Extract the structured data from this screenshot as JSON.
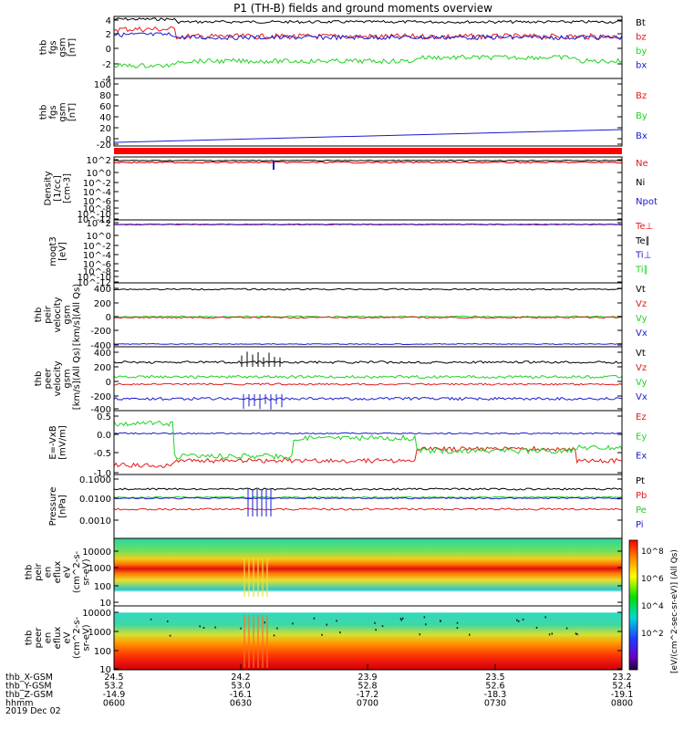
{
  "title": "P1 (TH-B) fields and ground moments overview",
  "date_label": "2019 Dec 02",
  "colors": {
    "black": "#000000",
    "red": "#e41a1a",
    "green": "#21d321",
    "blue": "#1a1ad0"
  },
  "ephemeris": {
    "rows": [
      {
        "label": "thb_X-GSM",
        "values": [
          "24.5",
          "24.2",
          "23.9",
          "23.5",
          "23.2"
        ]
      },
      {
        "label": "thb_Y-GSM",
        "values": [
          "53.2",
          "53.0",
          "52.8",
          "52.6",
          "52.4"
        ]
      },
      {
        "label": "thb_Z-GSM",
        "values": [
          "-14.9",
          "-16.1",
          "-17.2",
          "-18.3",
          "-19.1"
        ]
      },
      {
        "label": "hhmm",
        "values": [
          "0600",
          "0630",
          "0700",
          "0730",
          "0800"
        ]
      }
    ]
  },
  "colorbar": {
    "label": "[eV/(cm^2-sec-sr-eV)] (All Qs)",
    "tick_labels": [
      "10^8",
      "10^6",
      "10^4",
      "10^2"
    ]
  },
  "chart_data": [
    {
      "type": "line",
      "name": "fgs",
      "ylabel": [
        "thb",
        "fgs",
        "gsm",
        "[nT]"
      ],
      "yticks": [
        "4",
        "2",
        "0",
        "-2",
        "-4"
      ],
      "ylim": [
        -4,
        4
      ],
      "legend": [
        "Bt",
        "bz",
        "by",
        "bx"
      ],
      "legend_colors": [
        "black",
        "red",
        "green",
        "blue"
      ],
      "series": [
        {
          "name": "Bt",
          "approx": 3.0
        },
        {
          "name": "bz",
          "approx": 1.2
        },
        {
          "name": "by",
          "approx": -1.8
        },
        {
          "name": "bx",
          "approx": 1.5
        }
      ]
    },
    {
      "type": "line",
      "name": "fgs2",
      "ylabel": [
        "thb",
        "fgs",
        "gsm",
        "[nT]"
      ],
      "yticks": [
        "100",
        "80",
        "60",
        "40",
        "20",
        "0",
        "-20"
      ],
      "ylim": [
        -35,
        100
      ],
      "legend": [
        "Bz",
        "By",
        "Bx"
      ],
      "legend_colors": [
        "red",
        "green",
        "blue"
      ],
      "series": [
        {
          "name": "Bx",
          "start": -30,
          "end": -7
        }
      ]
    },
    {
      "type": "line",
      "name": "density",
      "ylabel": [
        "Density",
        "[1/cc]",
        "[cm-3]"
      ],
      "yticks": [
        "10^2",
        "10^0",
        "10^-2",
        "10^-4",
        "10^-6",
        "10^-8",
        "10^-10",
        "10^-12"
      ],
      "ylim": [
        -12,
        2
      ],
      "legend": [
        "Ne",
        "Ni",
        "Npot"
      ],
      "legend_colors": [
        "red",
        "black",
        "blue"
      ]
    },
    {
      "type": "line",
      "name": "temperature",
      "ylabel": [
        "moqt3",
        "[eV]"
      ],
      "yticks": [
        "10^2",
        "10^0",
        "10^-2",
        "10^-4",
        "10^-6",
        "10^-8",
        "10^-10",
        "10^-12"
      ],
      "ylim": [
        -12,
        2
      ],
      "legend": [
        "Te⊥",
        "Te∥",
        "Ti⊥",
        "Ti∥"
      ],
      "legend_colors": [
        "red",
        "black",
        "blue",
        "green"
      ]
    },
    {
      "type": "line",
      "name": "peir velocity",
      "ylabel": [
        "thb",
        "peir",
        "velocity",
        "gsm",
        "[km/s](All Qs)"
      ],
      "yticks": [
        "400",
        "200",
        "0",
        "-200",
        "-400"
      ],
      "ylim": [
        -400,
        400
      ],
      "legend": [
        "Vt",
        "Vz",
        "Vy",
        "Vx"
      ],
      "legend_colors": [
        "black",
        "red",
        "green",
        "blue"
      ],
      "series": [
        {
          "name": "Vt",
          "approx": 380
        },
        {
          "name": "Vz",
          "approx": 0
        },
        {
          "name": "Vy",
          "approx": 0
        },
        {
          "name": "Vx",
          "approx": -380
        }
      ]
    },
    {
      "type": "line",
      "name": "peer velocity",
      "ylabel": [
        "thb",
        "peer",
        "velocity",
        "gsm",
        "[km/s](All Qs)"
      ],
      "yticks": [
        "400",
        "200",
        "0",
        "-200",
        "-400"
      ],
      "ylim": [
        -400,
        400
      ],
      "legend": [
        "Vt",
        "Vz",
        "Vy",
        "Vx"
      ],
      "legend_colors": [
        "black",
        "red",
        "green",
        "blue"
      ],
      "series": [
        {
          "name": "Vt",
          "approx": 240
        },
        {
          "name": "Vz",
          "approx": -30
        },
        {
          "name": "Vy",
          "approx": 20
        },
        {
          "name": "Vx",
          "approx": -240
        }
      ]
    },
    {
      "type": "line",
      "name": "E field",
      "ylabel": [
        "E=-VxB",
        "[mV/m]"
      ],
      "yticks": [
        "0.5",
        "0.0",
        "-0.5",
        "-1.0"
      ],
      "ylim": [
        -1.0,
        0.5
      ],
      "legend": [
        "Ez",
        "Ey",
        "Ex"
      ],
      "legend_colors": [
        "red",
        "green",
        "blue"
      ]
    },
    {
      "type": "line",
      "name": "pressure",
      "ylabel": [
        "Pressure",
        "[nPa]"
      ],
      "yticks": [
        "0.1000",
        "0.0100",
        "0.0010"
      ],
      "ylim": [
        -3.5,
        -0.9
      ],
      "legend": [
        "Pt",
        "Pb",
        "Pe",
        "Pi"
      ],
      "legend_colors": [
        "black",
        "red",
        "green",
        "blue"
      ]
    },
    {
      "type": "heatmap",
      "name": "peir eflux",
      "ylabel": [
        "thb",
        "peir",
        "en",
        "eflux",
        "eV",
        "(cm^2-s-",
        "sr-eV)"
      ],
      "yticks": [
        "10000",
        "1000",
        "100",
        "10"
      ],
      "ylim": [
        1,
        4.3
      ]
    },
    {
      "type": "heatmap",
      "name": "peer eflux",
      "ylabel": [
        "thb",
        "peer",
        "en",
        "eflux",
        "eV",
        "(cm^2-s-",
        "sr-eV)"
      ],
      "yticks": [
        "10000",
        "1000",
        "100",
        "10"
      ],
      "ylim": [
        0.7,
        4.3
      ]
    }
  ]
}
